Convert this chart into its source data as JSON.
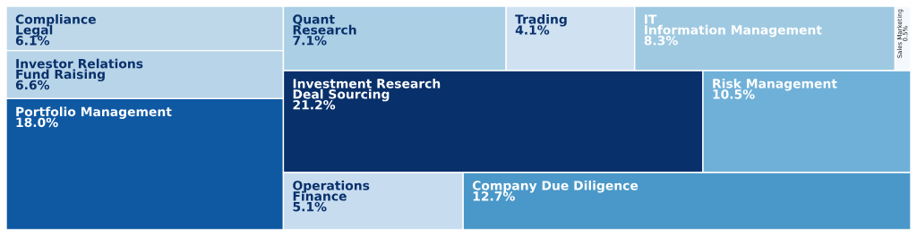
{
  "chart_data": {
    "type": "other",
    "categories": [
      "Compliance\nLegal",
      "Investor Relations\nFund Raising",
      "Portfolio Management",
      "Quant\nResearch",
      "Trading",
      "IT\nInformation Management",
      "Sales\nMarketing",
      "Investment Research\nDeal Sourcing",
      "Risk Management",
      "Operations\nFinance",
      "Company Due Diligence"
    ],
    "values": [
      6.1,
      6.6,
      18.0,
      7.1,
      4.1,
      8.3,
      0.5,
      21.2,
      10.5,
      5.1,
      12.7
    ],
    "value_labels": [
      "6.1%",
      "6.6%",
      "18.0%",
      "7.1%",
      "4.1%",
      "8.3%",
      "0.5%",
      "21.2%",
      "10.5%",
      "5.1%",
      "12.7%"
    ],
    "colors": [
      "#bed8ea",
      "#b8d4e8",
      "#0f59a3",
      "#abcfe5",
      "#d0e2f2",
      "#9fc9e1",
      "#f5f9fd",
      "#08306b",
      "#6fb0d8",
      "#c7dcef",
      "#4a98c9"
    ]
  }
}
